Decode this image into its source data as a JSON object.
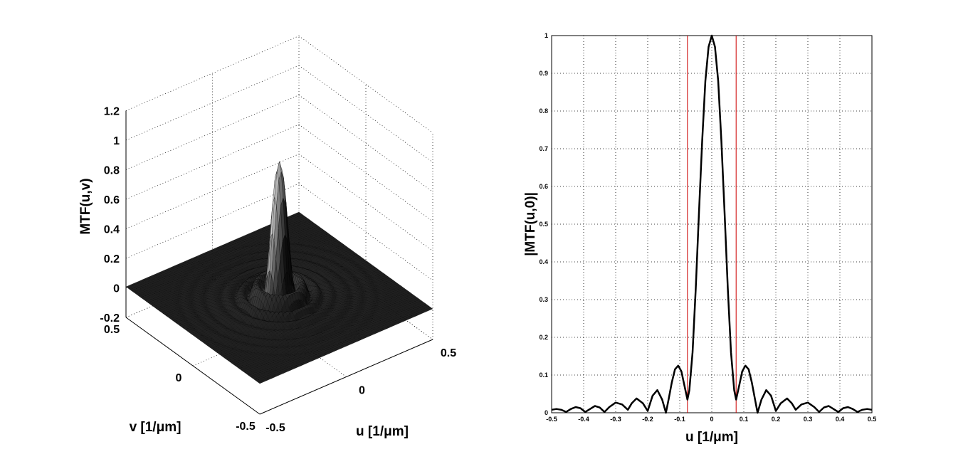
{
  "chart_data": [
    {
      "type": "surface",
      "zlabel": "MTF(u,v)",
      "xlabel": "u [1/μm]",
      "ylabel": "v [1/μm]",
      "xlim": [
        -0.5,
        0.5
      ],
      "ylim": [
        -0.5,
        0.5
      ],
      "zlim": [
        -0.2,
        1.2
      ],
      "xticks": [
        "-0.5",
        "0",
        "0.5"
      ],
      "yticks": [
        "0.5",
        "0",
        "-0.5"
      ],
      "zticks": [
        "-0.2",
        "0",
        "0.2",
        "0.4",
        "0.6",
        "0.8",
        "1",
        "1.2"
      ],
      "grid": true,
      "note_radial_profile": "same profile as the 2D plot, rotated about the origin",
      "peak": 0.93
    },
    {
      "type": "line",
      "xlabel": "u [1/μm]",
      "ylabel": "|MTF(u,0)|",
      "xlim": [
        -0.5,
        0.5
      ],
      "ylim": [
        0,
        1
      ],
      "xticks": [
        "-0.5",
        "-0.4",
        "-0.3",
        "-0.2",
        "-0.1",
        "0",
        "0.1",
        "0.2",
        "0.3",
        "0.4",
        "0.5"
      ],
      "yticks": [
        "0",
        "0.1",
        "0.2",
        "0.3",
        "0.4",
        "0.5",
        "0.6",
        "0.7",
        "0.8",
        "0.9",
        "1"
      ],
      "grid": true,
      "symmetric": true,
      "vertical_lines": [
        -0.076,
        0.076
      ],
      "vertical_line_color": "#cc0000",
      "line_color": "#000000",
      "series_half": {
        "u": [
          0,
          0.01,
          0.02,
          0.03,
          0.04,
          0.05,
          0.06,
          0.07,
          0.076,
          0.085,
          0.095,
          0.105,
          0.115,
          0.125,
          0.135,
          0.143,
          0.155,
          0.17,
          0.185,
          0.2,
          0.215,
          0.235,
          0.25,
          0.262,
          0.28,
          0.3,
          0.32,
          0.335,
          0.35,
          0.365,
          0.38,
          0.395,
          0.41,
          0.425,
          0.44,
          0.455,
          0.47,
          0.485,
          0.5
        ],
        "value": [
          1,
          0.97,
          0.88,
          0.72,
          0.53,
          0.33,
          0.16,
          0.06,
          0.035,
          0.07,
          0.11,
          0.125,
          0.115,
          0.08,
          0.035,
          0,
          0.035,
          0.06,
          0.045,
          0.005,
          0.025,
          0.038,
          0.025,
          0.008,
          0.022,
          0.027,
          0.015,
          0.002,
          0.014,
          0.018,
          0.01,
          0.002,
          0.012,
          0.015,
          0.01,
          0.002,
          0.008,
          0.01,
          0.008
        ]
      }
    }
  ]
}
